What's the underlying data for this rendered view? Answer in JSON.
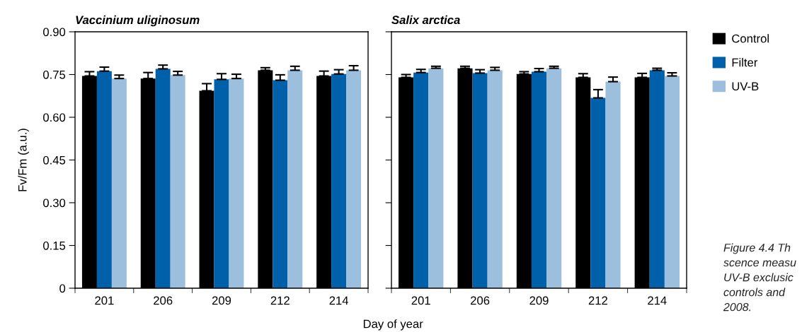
{
  "chart_data": [
    {
      "type": "bar",
      "title": "Vaccinium uliginosum",
      "xlabel": "Day of year",
      "ylabel": "Fv/Fm (a.u.)",
      "categories": [
        "201",
        "206",
        "209",
        "212",
        "214"
      ],
      "series": [
        {
          "name": "Control",
          "color": "#000000",
          "values": [
            0.745,
            0.736,
            0.693,
            0.765,
            0.745
          ],
          "errors": [
            [
              0.745,
              0.76
            ],
            [
              0.736,
              0.757
            ],
            [
              0.693,
              0.718
            ],
            [
              0.765,
              0.774
            ],
            [
              0.745,
              0.762
            ]
          ]
        },
        {
          "name": "Filter",
          "color": "#0060aa",
          "values": [
            0.762,
            0.77,
            0.733,
            0.73,
            0.752
          ],
          "errors": [
            [
              0.762,
              0.776
            ],
            [
              0.77,
              0.783
            ],
            [
              0.733,
              0.753
            ],
            [
              0.73,
              0.749
            ],
            [
              0.752,
              0.767
            ]
          ]
        },
        {
          "name": "UV-B",
          "color": "#9bbfdc",
          "values": [
            0.736,
            0.748,
            0.736,
            0.765,
            0.765
          ],
          "errors": [
            [
              0.736,
              0.748
            ],
            [
              0.748,
              0.761
            ],
            [
              0.736,
              0.751
            ],
            [
              0.765,
              0.779
            ],
            [
              0.765,
              0.781
            ]
          ]
        }
      ],
      "ylim": [
        0,
        0.9
      ],
      "yticks": [
        0,
        0.15,
        {
          "value": 0.3,
          "label": "0.30"
        },
        0.45,
        {
          "value": 0.6,
          "label": "0.60"
        },
        0.75,
        {
          "value": 0.9,
          "label": "0.90"
        }
      ],
      "grid": false,
      "legend": "right"
    },
    {
      "type": "bar",
      "title": "Salix arctica",
      "categories": [
        "201",
        "206",
        "209",
        "212",
        "214"
      ],
      "series": [
        {
          "color": "#000000",
          "values": [
            0.74,
            0.772,
            0.752,
            0.74,
            0.74
          ],
          "errors": [
            [
              0.74,
              0.75
            ],
            [
              0.772,
              0.779
            ],
            [
              0.752,
              0.76
            ],
            [
              0.74,
              0.753
            ],
            [
              0.74,
              0.754
            ]
          ]
        },
        {
          "color": "#0060aa",
          "values": [
            0.757,
            0.755,
            0.76,
            0.668,
            0.765
          ],
          "errors": [
            [
              0.757,
              0.768
            ],
            [
              0.755,
              0.767
            ],
            [
              0.76,
              0.771
            ],
            [
              0.668,
              0.697
            ],
            [
              0.765,
              0.772
            ]
          ]
        },
        {
          "color": "#9bbfdc",
          "values": [
            0.772,
            0.765,
            0.772,
            0.725,
            0.745
          ],
          "errors": [
            [
              0.772,
              0.779
            ],
            [
              0.765,
              0.775
            ],
            [
              0.772,
              0.779
            ],
            [
              0.725,
              0.741
            ],
            [
              0.745,
              0.756
            ]
          ]
        }
      ],
      "ylim": [
        0,
        0.9
      ],
      "yticks": [
        0,
        0.15,
        0.3,
        0.45,
        0.6,
        0.75,
        0.9
      ],
      "tick_labels": "x",
      "grid": false,
      "annotations": [
        "Figure 4.4 Th",
        "scence measu",
        "UV-B exclusic",
        "controls and",
        "2008."
      ]
    }
  ]
}
